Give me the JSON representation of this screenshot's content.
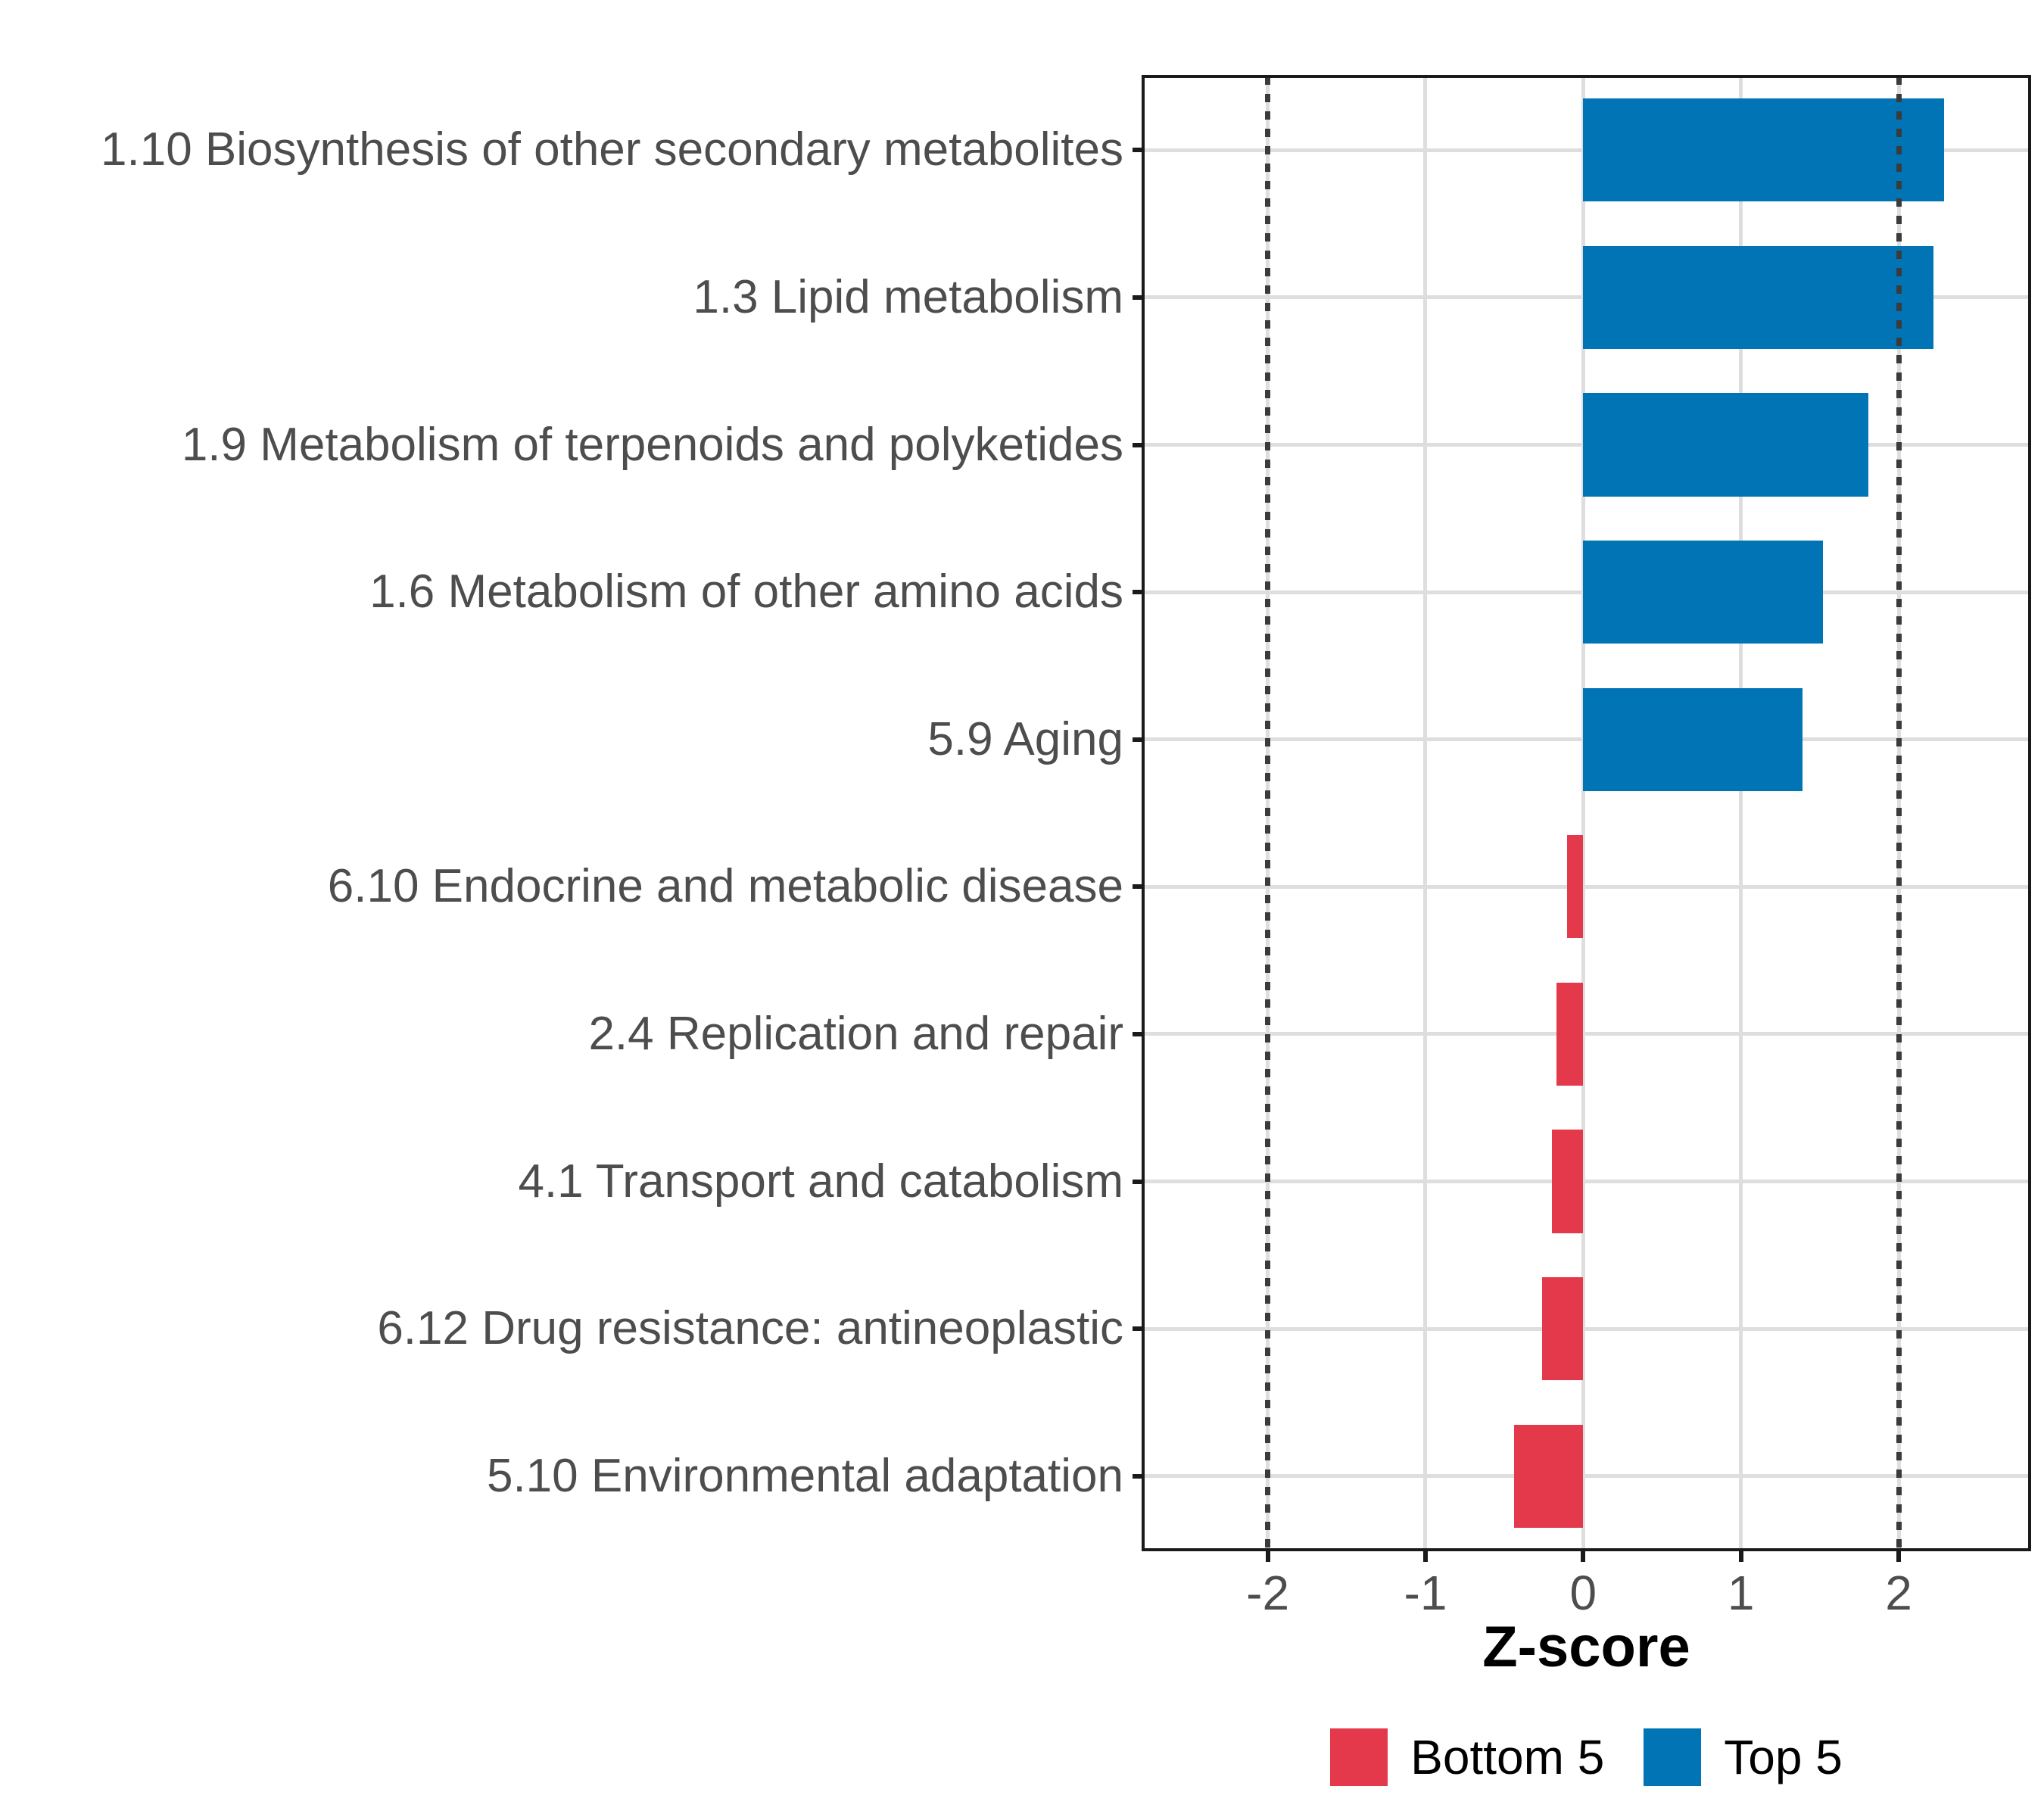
{
  "chart_data": {
    "type": "bar",
    "orientation": "horizontal",
    "title": "",
    "xlabel": "Z-score",
    "ylabel": "",
    "categories": [
      "1.10 Biosynthesis of other secondary metabolites",
      "1.3 Lipid metabolism",
      "1.9 Metabolism of terpenoids and polyketides",
      "1.6 Metabolism of other amino acids",
      "5.9 Aging",
      "6.10 Endocrine and metabolic disease",
      "2.4 Replication and repair",
      "4.1 Transport and catabolism",
      "6.12 Drug resistance: antineoplastic",
      "5.10 Environmental adaptation"
    ],
    "values": [
      2.29,
      2.22,
      1.81,
      1.52,
      1.39,
      -0.1,
      -0.17,
      -0.2,
      -0.26,
      -0.44
    ],
    "groups": [
      "Top 5",
      "Top 5",
      "Top 5",
      "Top 5",
      "Top 5",
      "Bottom 5",
      "Bottom 5",
      "Bottom 5",
      "Bottom 5",
      "Bottom 5"
    ],
    "xticks": [
      -2,
      -1,
      0,
      1,
      2
    ],
    "xtick_labels": [
      "-2",
      "-1",
      "0",
      "1",
      "2"
    ],
    "xlim": [
      -2.79,
      2.83
    ],
    "reference_lines": [
      -2,
      2
    ],
    "reference_line_style": "dotted",
    "grid": true,
    "legend_position": "bottom",
    "legend": [
      {
        "label": "Bottom 5",
        "color": "#e4394b"
      },
      {
        "label": "Top 5",
        "color": "#0074b5"
      }
    ],
    "colors": {
      "Top 5": "#0074b5",
      "Bottom 5": "#e4394b"
    },
    "style": {
      "gridline_color": "#dedede",
      "panel_border_color": "#1a1a1a",
      "axis_text_color": "#4d4d4d",
      "reference_line_color": "#3b3b3b",
      "bar_band_fraction": 0.7
    }
  }
}
